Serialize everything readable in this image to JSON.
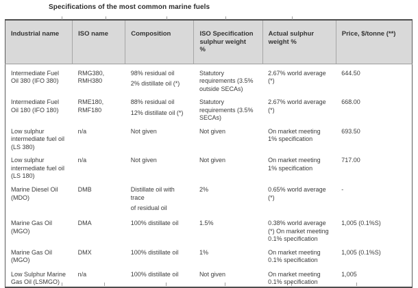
{
  "title": "Specifications of the most common marine fuels",
  "table": {
    "columns": [
      "Industrial name",
      "ISO name",
      "Composition",
      "ISO Specification\nsulphur weight\n%",
      "Actual sulphur\nweight %",
      "Price, $/tonne (**)"
    ],
    "rows": [
      {
        "cells": [
          [
            "Intermediate Fuel\nOil 380 (IFO 380)"
          ],
          [
            "RMG380,\nRMH380"
          ],
          [
            "98% residual oil",
            "2% distillate oil (*)"
          ],
          [
            "Statutory\nrequirements (3.5%\noutside SECAs)"
          ],
          [
            "2.67% world average\n(*)"
          ],
          [
            "644.50"
          ]
        ]
      },
      {
        "cells": [
          [
            "Intermediate Fuel\nOil 180 (IFO 180)"
          ],
          [
            "RME180,\nRMF180"
          ],
          [
            "88% residual oil",
            "12% distillate oil (*)"
          ],
          [
            "Statutory\nrequirements (3.5%\nSECAs)"
          ],
          [
            "2.67% world average\n(*)"
          ],
          [
            "668.00"
          ]
        ]
      },
      {
        "cells": [
          [
            "Low sulphur\nintermediate fuel oil\n(LS 380)"
          ],
          [
            "n/a"
          ],
          [
            "Not given"
          ],
          [
            "Not given"
          ],
          [
            "On market meeting\n1% specification"
          ],
          [
            "693.50"
          ]
        ]
      },
      {
        "cells": [
          [
            "Low sulphur\nintermediate fuel oil\n(LS 180)"
          ],
          [
            "n/a"
          ],
          [
            "Not given"
          ],
          [
            "Not given"
          ],
          [
            "On market meeting\n1% specification"
          ],
          [
            "717.00"
          ]
        ]
      },
      {
        "cells": [
          [
            "Marine Diesel Oil\n(MDO)"
          ],
          [
            "DMB"
          ],
          [
            "Distillate oil with\ntrace",
            "of residual oil"
          ],
          [
            "2%"
          ],
          [
            "0.65% world average\n(*)"
          ],
          [
            "-"
          ]
        ]
      },
      {
        "cells": [
          [
            "Marine Gas Oil\n(MGO)"
          ],
          [
            "DMA"
          ],
          [
            "100% distillate oil"
          ],
          [
            "1.5%"
          ],
          [
            "0.38% world average\n(*) On market meeting\n0.1% specification"
          ],
          [
            "1,005 (0.1%S)"
          ]
        ]
      },
      {
        "cells": [
          [
            "Marine Gas Oil\n(MGO)"
          ],
          [
            "DMX"
          ],
          [
            "100% distillate oil"
          ],
          [
            "1%"
          ],
          [
            "On market meeting\n0.1% specification"
          ],
          [
            "1,005 (0.1%S)"
          ]
        ]
      },
      {
        "cells": [
          [
            "Low Sulphur Marine\nGas Oil (LSMGO)"
          ],
          [
            "n/a"
          ],
          [
            "100% distillate oil"
          ],
          [
            "Not given"
          ],
          [
            "On market meeting\n0.1% specification"
          ],
          [
            "1,005"
          ]
        ]
      }
    ]
  }
}
